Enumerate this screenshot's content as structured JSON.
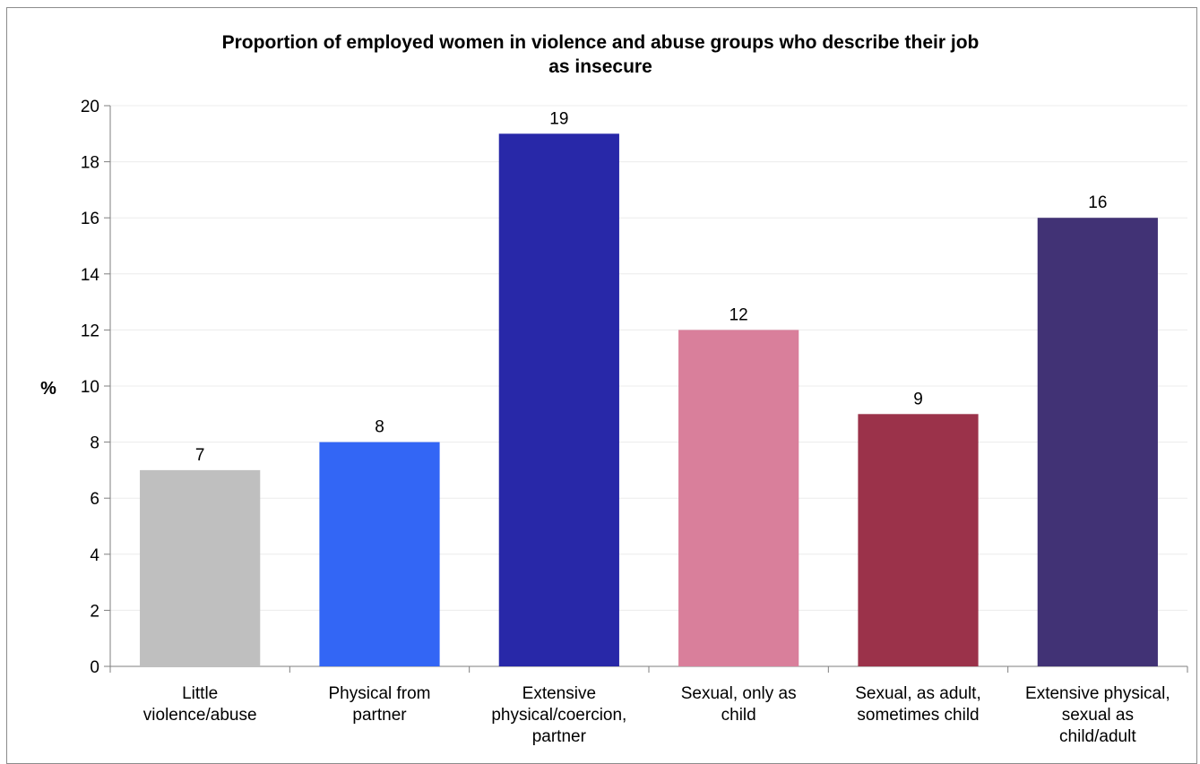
{
  "chart_data": {
    "type": "bar",
    "title_lines": [
      "Proportion of employed  women in violence and abuse groups who describe their job",
      "as insecure"
    ],
    "ylabel": "%",
    "xlabel": "",
    "ylim": [
      0,
      20
    ],
    "yticks": [
      0,
      2,
      4,
      6,
      8,
      10,
      12,
      14,
      16,
      18,
      20
    ],
    "grid": true,
    "categories": [
      [
        "Little",
        "violence/abuse"
      ],
      [
        "Physical from",
        "partner"
      ],
      [
        "Extensive",
        "physical/coercion,",
        "partner"
      ],
      [
        "Sexual, only as",
        "child"
      ],
      [
        "Sexual, as adult,",
        "sometimes child"
      ],
      [
        "Extensive physical,",
        "sexual as",
        "child/adult"
      ]
    ],
    "values": [
      7,
      8,
      19,
      12,
      9,
      16
    ],
    "colors": [
      "#bfbfbf",
      "#3366f5",
      "#2828a8",
      "#d97f9b",
      "#9b324a",
      "#413275"
    ],
    "data_labels": [
      "7",
      "8",
      "19",
      "12",
      "9",
      "16"
    ]
  }
}
